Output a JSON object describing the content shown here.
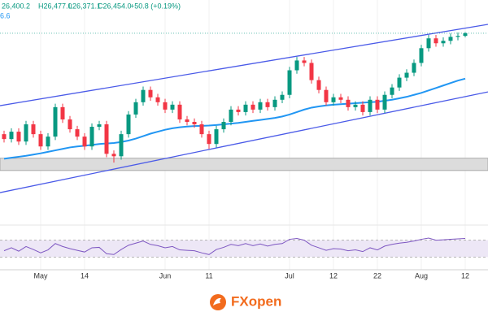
{
  "chart_data": {
    "type": "candlestick",
    "header": {
      "open": "26,400.2",
      "high": "H26,477.0",
      "low": "L26,371.1",
      "close": "C26,454.0",
      "change": "+50.8 (+0.19%)",
      "ma_label": "6.6"
    },
    "brand": "FXopen",
    "open": [
      24400,
      24300,
      24450,
      24250,
      24600,
      24400,
      24150,
      24350,
      24950,
      24700,
      24500,
      24350,
      24150,
      24550,
      24600,
      24000,
      23950,
      24400,
      24800,
      25050,
      25300,
      25150,
      25050,
      24900,
      25000,
      24700,
      24650,
      24600,
      24400,
      24200,
      24500,
      24650,
      24900,
      24850,
      25000,
      24900,
      25050,
      24950,
      25100,
      25200,
      25700,
      25900,
      25850,
      25500,
      25300,
      25050,
      25150,
      25100,
      24950,
      25000,
      24850,
      25100,
      24900,
      25200,
      25350,
      25550,
      25650,
      25850,
      26150,
      26350,
      26250,
      26300,
      26380,
      26400.2
    ],
    "high": [
      24470,
      24520,
      24520,
      24670,
      24670,
      24470,
      24420,
      25020,
      25020,
      24770,
      24570,
      24420,
      24620,
      24670,
      24670,
      24070,
      24470,
      24870,
      25120,
      25370,
      25370,
      25220,
      25120,
      25070,
      25070,
      24770,
      24720,
      24670,
      24470,
      24570,
      24720,
      24970,
      24970,
      25070,
      25070,
      25120,
      25120,
      25170,
      25270,
      25770,
      25970,
      25970,
      25920,
      25570,
      25370,
      25220,
      25220,
      25170,
      25070,
      25070,
      25170,
      25170,
      25270,
      25420,
      25620,
      25720,
      25920,
      26220,
      26420,
      26420,
      26370,
      26450,
      26470,
      26477
    ],
    "low": [
      24230,
      24230,
      24180,
      24180,
      24330,
      24080,
      24080,
      24280,
      24630,
      24430,
      24280,
      24080,
      24080,
      24480,
      23930,
      23820,
      23880,
      24330,
      24730,
      24980,
      25080,
      24980,
      24830,
      24830,
      24630,
      24580,
      24530,
      24330,
      24100,
      24130,
      24430,
      24580,
      24780,
      24780,
      24830,
      24830,
      24880,
      24880,
      25030,
      25130,
      25630,
      25780,
      25430,
      25230,
      24980,
      24980,
      25030,
      24880,
      24880,
      24780,
      24780,
      24830,
      24830,
      25130,
      25280,
      25480,
      25580,
      25780,
      26080,
      26180,
      26180,
      26230,
      26310,
      26371.1
    ],
    "close": [
      24300,
      24450,
      24250,
      24600,
      24400,
      24150,
      24350,
      24950,
      24700,
      24500,
      24350,
      24150,
      24550,
      24600,
      24000,
      23950,
      24400,
      24800,
      25050,
      25300,
      25150,
      25050,
      24900,
      25000,
      24700,
      24650,
      24600,
      24400,
      24200,
      24500,
      24650,
      24900,
      24850,
      25000,
      24900,
      25050,
      24950,
      25100,
      25200,
      25700,
      25900,
      25850,
      25500,
      25300,
      25050,
      25150,
      25100,
      24950,
      25000,
      24850,
      25100,
      24900,
      25200,
      25350,
      25550,
      25650,
      25850,
      26150,
      26350,
      26250,
      26300,
      26380,
      26400.2,
      26454
    ],
    "ma": [
      23900,
      23920,
      23940,
      23960,
      23985,
      24010,
      24040,
      24070,
      24100,
      24130,
      24150,
      24165,
      24180,
      24200,
      24210,
      24220,
      24240,
      24270,
      24310,
      24360,
      24410,
      24450,
      24490,
      24520,
      24540,
      24555,
      24565,
      24570,
      24575,
      24585,
      24600,
      24615,
      24630,
      24650,
      24670,
      24690,
      24710,
      24730,
      24760,
      24800,
      24850,
      24900,
      24940,
      24965,
      24985,
      25000,
      25010,
      25020,
      25030,
      25040,
      25050,
      25060,
      25080,
      25100,
      25130,
      25160,
      25200,
      25240,
      25290,
      25340,
      25390,
      25440,
      25490,
      25530
    ],
    "rsi": [
      45,
      52,
      44,
      55,
      48,
      40,
      47,
      62,
      55,
      50,
      46,
      42,
      52,
      53,
      38,
      36,
      48,
      58,
      63,
      68,
      60,
      57,
      52,
      55,
      47,
      46,
      45,
      40,
      36,
      48,
      53,
      60,
      57,
      62,
      57,
      61,
      56,
      60,
      62,
      72,
      74,
      70,
      58,
      52,
      46,
      50,
      49,
      45,
      47,
      43,
      52,
      47,
      56,
      60,
      63,
      65,
      68,
      72,
      75,
      70,
      71,
      72,
      73,
      74
    ],
    "rsi_ylim": [
      0,
      100
    ],
    "rsi_levels": [
      30,
      70
    ],
    "channel_upper": [
      24980,
      26635
    ],
    "channel_lower": [
      23210,
      25260
    ],
    "zone": [
      23660,
      23910
    ],
    "ylim": [
      22500,
      26800
    ],
    "xticks": [
      {
        "value": 5,
        "label": "May"
      },
      {
        "value": 11,
        "label": "14"
      },
      {
        "value": 22,
        "label": "Jun"
      },
      {
        "value": 28,
        "label": "11"
      },
      {
        "value": 39,
        "label": "Jul"
      },
      {
        "value": 45,
        "label": "12"
      },
      {
        "value": 51,
        "label": "22"
      },
      {
        "value": 57,
        "label": "Aug"
      },
      {
        "value": 63,
        "label": "12"
      }
    ],
    "up_color": "#089981",
    "down_color": "#f23645",
    "ma_color": "#2196f3",
    "channel_color": "#4a5ae8",
    "rsi_color": "#7e57c2"
  }
}
